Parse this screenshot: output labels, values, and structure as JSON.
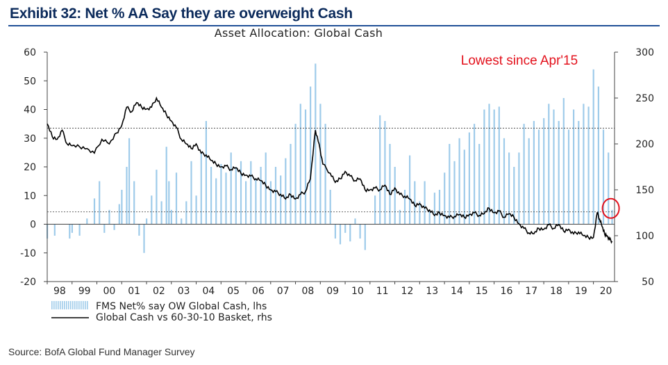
{
  "header": {
    "exhibit_title": "Exhibit 32: Net % AA Say they are overweight Cash",
    "source": "Source: BofA Global Fund Manager Survey"
  },
  "colors": {
    "bars": "#9ecbea",
    "line": "#000000",
    "annotation": "#e3111c",
    "title_rule": "#1f4e96"
  },
  "chart_data": {
    "type": "bar+line",
    "title": "Asset Allocation: Global Cash",
    "x_tick_labels": [
      "98",
      "99",
      "00",
      "01",
      "02",
      "03",
      "04",
      "05",
      "06",
      "07",
      "08",
      "09",
      "10",
      "11",
      "12",
      "13",
      "14",
      "15",
      "16",
      "17",
      "18",
      "19",
      "20"
    ],
    "x_range": [
      1998,
      2020.85
    ],
    "y_left": {
      "min": -20,
      "max": 60,
      "ticks": [
        -20,
        -10,
        0,
        10,
        20,
        30,
        40,
        50,
        60
      ]
    },
    "y_right": {
      "min": 50,
      "max": 300,
      "ticks": [
        50,
        100,
        150,
        200,
        250,
        300
      ]
    },
    "reference_lines_lhs": [
      33.5,
      4.3
    ],
    "annotation": {
      "text": "Lowest since Apr'15",
      "circle_at": {
        "x": 2020.7,
        "lhs": 5.5
      }
    },
    "series": [
      {
        "name": "FMS Net% say OW Global Cash, lhs",
        "kind": "bar",
        "axis": "left",
        "points": [
          [
            1998.0,
            -5
          ],
          [
            1998.3,
            -4
          ],
          [
            1998.6,
            0
          ],
          [
            1998.9,
            -5
          ],
          [
            1999.0,
            -3
          ],
          [
            1999.3,
            -4
          ],
          [
            1999.6,
            2
          ],
          [
            1999.9,
            9
          ],
          [
            2000.1,
            15
          ],
          [
            2000.3,
            -3
          ],
          [
            2000.5,
            5
          ],
          [
            2000.7,
            -2
          ],
          [
            2000.9,
            7
          ],
          [
            2001.0,
            12
          ],
          [
            2001.2,
            20
          ],
          [
            2001.3,
            30
          ],
          [
            2001.5,
            15
          ],
          [
            2001.7,
            -4
          ],
          [
            2001.9,
            -10
          ],
          [
            2002.0,
            2
          ],
          [
            2002.2,
            10
          ],
          [
            2002.4,
            19
          ],
          [
            2002.6,
            8
          ],
          [
            2002.8,
            27
          ],
          [
            2002.9,
            15
          ],
          [
            2003.0,
            5
          ],
          [
            2003.2,
            18
          ],
          [
            2003.4,
            2
          ],
          [
            2003.6,
            8
          ],
          [
            2003.8,
            22
          ],
          [
            2004.0,
            10
          ],
          [
            2004.2,
            25
          ],
          [
            2004.4,
            36
          ],
          [
            2004.6,
            20
          ],
          [
            2004.8,
            16
          ],
          [
            2005.0,
            21
          ],
          [
            2005.2,
            18
          ],
          [
            2005.4,
            25
          ],
          [
            2005.6,
            20
          ],
          [
            2005.8,
            22
          ],
          [
            2006.0,
            15
          ],
          [
            2006.2,
            22
          ],
          [
            2006.4,
            16
          ],
          [
            2006.6,
            20
          ],
          [
            2006.8,
            25
          ],
          [
            2007.0,
            15
          ],
          [
            2007.2,
            20
          ],
          [
            2007.4,
            17
          ],
          [
            2007.6,
            23
          ],
          [
            2007.8,
            28
          ],
          [
            2008.0,
            35
          ],
          [
            2008.2,
            42
          ],
          [
            2008.4,
            40
          ],
          [
            2008.6,
            48
          ],
          [
            2008.8,
            56
          ],
          [
            2009.0,
            42
          ],
          [
            2009.2,
            35
          ],
          [
            2009.4,
            12
          ],
          [
            2009.6,
            -5
          ],
          [
            2009.8,
            -7
          ],
          [
            2010.0,
            -3
          ],
          [
            2010.2,
            -6
          ],
          [
            2010.4,
            2
          ],
          [
            2010.6,
            -5
          ],
          [
            2010.8,
            -9
          ],
          [
            2011.0,
            0
          ],
          [
            2011.2,
            10
          ],
          [
            2011.4,
            38
          ],
          [
            2011.6,
            36
          ],
          [
            2011.8,
            28
          ],
          [
            2012.0,
            20
          ],
          [
            2012.2,
            5
          ],
          [
            2012.4,
            12
          ],
          [
            2012.6,
            24
          ],
          [
            2012.8,
            15
          ],
          [
            2013.0,
            8
          ],
          [
            2013.2,
            15
          ],
          [
            2013.4,
            5
          ],
          [
            2013.6,
            11
          ],
          [
            2013.8,
            12
          ],
          [
            2014.0,
            18
          ],
          [
            2014.2,
            28
          ],
          [
            2014.4,
            22
          ],
          [
            2014.6,
            30
          ],
          [
            2014.8,
            26
          ],
          [
            2015.0,
            32
          ],
          [
            2015.2,
            35
          ],
          [
            2015.4,
            28
          ],
          [
            2015.6,
            40
          ],
          [
            2015.8,
            42
          ],
          [
            2016.0,
            40
          ],
          [
            2016.2,
            41
          ],
          [
            2016.4,
            30
          ],
          [
            2016.6,
            25
          ],
          [
            2016.8,
            20
          ],
          [
            2017.0,
            25
          ],
          [
            2017.2,
            35
          ],
          [
            2017.4,
            30
          ],
          [
            2017.6,
            36
          ],
          [
            2017.8,
            33
          ],
          [
            2018.0,
            37
          ],
          [
            2018.2,
            42
          ],
          [
            2018.4,
            40
          ],
          [
            2018.6,
            36
          ],
          [
            2018.8,
            44
          ],
          [
            2019.0,
            33
          ],
          [
            2019.2,
            40
          ],
          [
            2019.4,
            36
          ],
          [
            2019.6,
            42
          ],
          [
            2019.8,
            41
          ],
          [
            2020.0,
            54
          ],
          [
            2020.2,
            48
          ],
          [
            2020.4,
            33
          ],
          [
            2020.6,
            25
          ],
          [
            2020.75,
            5
          ]
        ]
      },
      {
        "name": "Global Cash vs 60-30-10 Basket, rhs",
        "kind": "line",
        "axis": "right",
        "points": [
          [
            1998.0,
            222
          ],
          [
            1998.2,
            208
          ],
          [
            1998.4,
            205
          ],
          [
            1998.6,
            215
          ],
          [
            1998.8,
            200
          ],
          [
            1999.0,
            198
          ],
          [
            1999.3,
            197
          ],
          [
            1999.6,
            195
          ],
          [
            1999.9,
            190
          ],
          [
            2000.2,
            205
          ],
          [
            2000.5,
            200
          ],
          [
            2000.8,
            212
          ],
          [
            2001.0,
            220
          ],
          [
            2001.2,
            240
          ],
          [
            2001.4,
            235
          ],
          [
            2001.6,
            245
          ],
          [
            2001.8,
            240
          ],
          [
            2002.0,
            238
          ],
          [
            2002.2,
            240
          ],
          [
            2002.4,
            250
          ],
          [
            2002.6,
            240
          ],
          [
            2002.8,
            232
          ],
          [
            2003.0,
            225
          ],
          [
            2003.2,
            218
          ],
          [
            2003.4,
            205
          ],
          [
            2003.6,
            200
          ],
          [
            2003.8,
            195
          ],
          [
            2004.0,
            200
          ],
          [
            2004.2,
            190
          ],
          [
            2004.4,
            188
          ],
          [
            2004.6,
            182
          ],
          [
            2004.8,
            178
          ],
          [
            2005.0,
            175
          ],
          [
            2005.2,
            176
          ],
          [
            2005.4,
            172
          ],
          [
            2005.6,
            174
          ],
          [
            2005.8,
            168
          ],
          [
            2006.0,
            166
          ],
          [
            2006.2,
            165
          ],
          [
            2006.4,
            162
          ],
          [
            2006.6,
            160
          ],
          [
            2006.8,
            155
          ],
          [
            2007.0,
            150
          ],
          [
            2007.2,
            148
          ],
          [
            2007.4,
            145
          ],
          [
            2007.6,
            140
          ],
          [
            2007.8,
            145
          ],
          [
            2008.0,
            140
          ],
          [
            2008.2,
            145
          ],
          [
            2008.4,
            148
          ],
          [
            2008.6,
            162
          ],
          [
            2008.8,
            215
          ],
          [
            2008.95,
            200
          ],
          [
            2009.1,
            178
          ],
          [
            2009.4,
            168
          ],
          [
            2009.6,
            158
          ],
          [
            2009.8,
            162
          ],
          [
            2010.0,
            170
          ],
          [
            2010.2,
            165
          ],
          [
            2010.4,
            160
          ],
          [
            2010.6,
            162
          ],
          [
            2010.8,
            150
          ],
          [
            2011.0,
            150
          ],
          [
            2011.2,
            152
          ],
          [
            2011.4,
            150
          ],
          [
            2011.6,
            155
          ],
          [
            2011.8,
            145
          ],
          [
            2012.0,
            152
          ],
          [
            2012.2,
            145
          ],
          [
            2012.4,
            143
          ],
          [
            2012.6,
            140
          ],
          [
            2012.8,
            133
          ],
          [
            2013.0,
            135
          ],
          [
            2013.2,
            130
          ],
          [
            2013.4,
            128
          ],
          [
            2013.6,
            122
          ],
          [
            2013.8,
            125
          ],
          [
            2014.0,
            122
          ],
          [
            2014.2,
            120
          ],
          [
            2014.4,
            121
          ],
          [
            2014.6,
            123
          ],
          [
            2014.8,
            120
          ],
          [
            2015.0,
            123
          ],
          [
            2015.2,
            125
          ],
          [
            2015.4,
            122
          ],
          [
            2015.6,
            124
          ],
          [
            2015.8,
            130
          ],
          [
            2016.0,
            125
          ],
          [
            2016.2,
            127
          ],
          [
            2016.4,
            120
          ],
          [
            2016.6,
            124
          ],
          [
            2016.8,
            120
          ],
          [
            2017.0,
            113
          ],
          [
            2017.2,
            108
          ],
          [
            2017.4,
            103
          ],
          [
            2017.6,
            102
          ],
          [
            2017.8,
            108
          ],
          [
            2018.0,
            107
          ],
          [
            2018.2,
            112
          ],
          [
            2018.4,
            108
          ],
          [
            2018.6,
            112
          ],
          [
            2018.8,
            105
          ],
          [
            2019.0,
            107
          ],
          [
            2019.2,
            102
          ],
          [
            2019.4,
            104
          ],
          [
            2019.6,
            100
          ],
          [
            2019.8,
            98
          ],
          [
            2020.0,
            98
          ],
          [
            2020.15,
            125
          ],
          [
            2020.25,
            118
          ],
          [
            2020.35,
            110
          ],
          [
            2020.45,
            102
          ],
          [
            2020.55,
            100
          ],
          [
            2020.65,
            96
          ],
          [
            2020.75,
            94
          ]
        ]
      }
    ]
  }
}
